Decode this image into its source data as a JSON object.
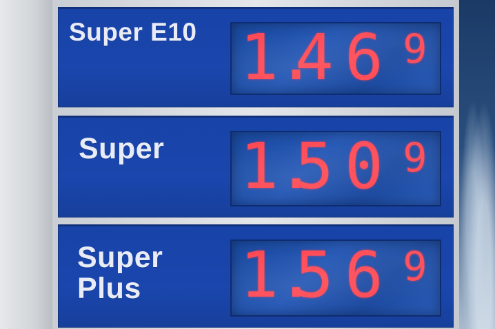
{
  "boards": [
    {
      "fuel": [
        "Super E10"
      ],
      "price": {
        "whole": "1",
        "sep": ".",
        "d1": "4",
        "d2": "6",
        "tenth": "9"
      }
    },
    {
      "fuel": [
        "Super"
      ],
      "price": {
        "whole": "1",
        "sep": ".",
        "d1": "5",
        "d2": "0",
        "tenth": "9"
      }
    },
    {
      "fuel": [
        "Super",
        "Plus"
      ],
      "price": {
        "whole": "1",
        "sep": ".",
        "d1": "5",
        "d2": "6",
        "tenth": "9"
      }
    }
  ],
  "colors": {
    "panel": "#1a46ad",
    "led": "#ff4a55",
    "text": "#e9ecf6"
  }
}
